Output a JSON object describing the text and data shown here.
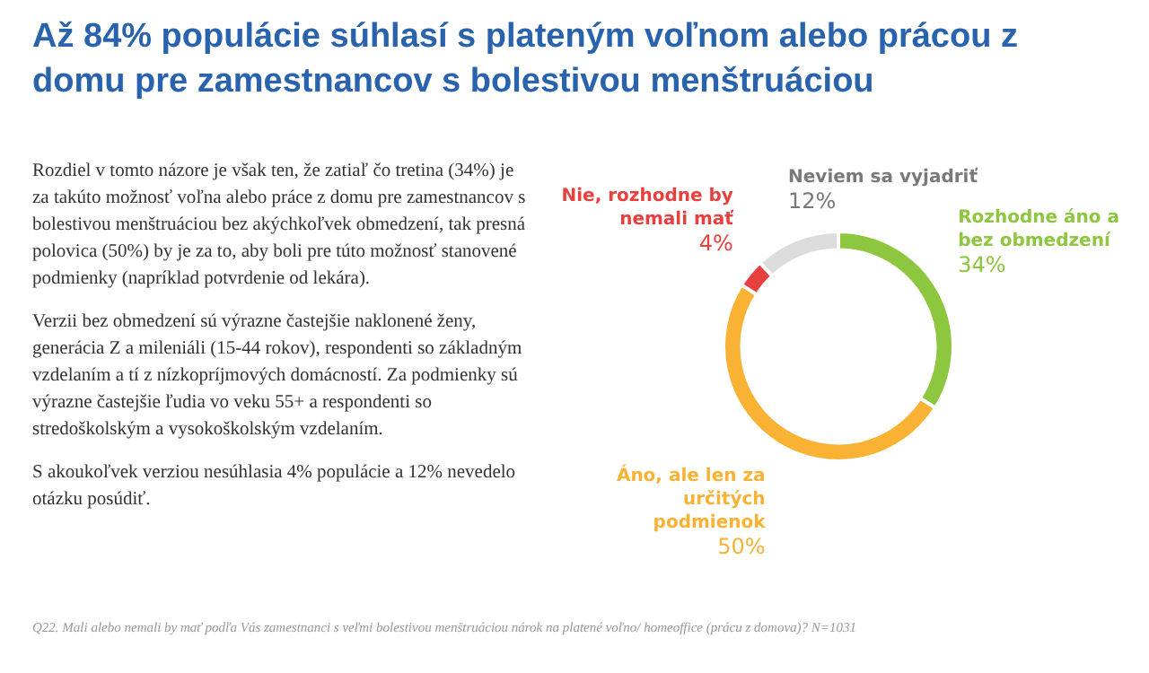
{
  "chart_data": {
    "type": "donut",
    "title": "Až 84% populácie súhlasí s plateným voľnom alebo prácou z domu pre zamestnancov s bolestivou menštruáciou",
    "categories": [
      "Rozhodne áno a bez obmedzení",
      "Áno, ale len za určitých podmienok",
      "Nie, rozhodne by nemali mať",
      "Neviem sa vyjadriť"
    ],
    "values": [
      34,
      50,
      4,
      12
    ],
    "colors": [
      "#8dc63f",
      "#f9b233",
      "#e8403f",
      "#dcdcdc"
    ],
    "value_labels": [
      "34%",
      "50%",
      "4%",
      "12%"
    ],
    "annotations": [
      "Rozdiel v tomto názore je však ten, že zatiaľ čo tretina (34%) je za takúto možnosť voľna alebo práce z domu pre zamestnancov s bolestivou menštruáciou bez akýchkoľvek obmedzení, tak presná polovica (50%) by je za to, aby boli pre túto možnosť stanovené podmienky (napríklad potvrdenie od lekára).",
      "Verzii bez obmedzení sú výrazne častejšie naklonené ženy, generácia Z a mileniáli (15-44 rokov), respondenti so základným vzdelaním a tí z nízkopríjmových domácností. Za podmienky sú výrazne častejšie ľudia vo veku 55+ a respondenti so stredoškolským a vysokoškolským vzdelaním.",
      "S akoukoľvek verziou nesúhlasia 4% populácie a 12% nevedelo otázku posúdiť.",
      "Q22. Mali alebo nemali by mať podľa Vás zamestnanci s veľmi bolestivou menštruáciou nárok na platené voľno/ homeoffice (prácu z domova)? N=1031"
    ]
  }
}
